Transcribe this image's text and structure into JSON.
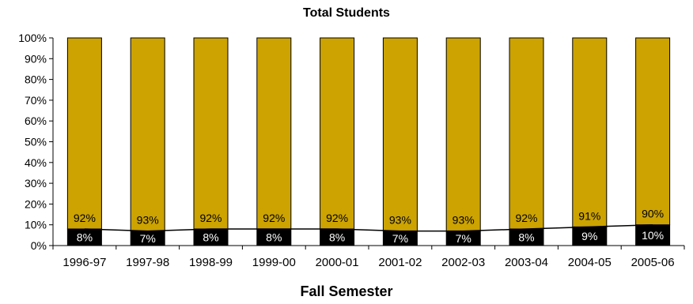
{
  "chart_data": {
    "type": "bar",
    "stacked": true,
    "percent_stacked": true,
    "title": "Total Students",
    "xlabel": "Fall Semester",
    "ylabel": "",
    "ylim": [
      0,
      100
    ],
    "yticks": [
      "0%",
      "10%",
      "20%",
      "30%",
      "40%",
      "50%",
      "60%",
      "70%",
      "80%",
      "90%",
      "100%"
    ],
    "categories": [
      "1996-97",
      "1997-98",
      "1998-99",
      "1999-00",
      "2000-01",
      "2001-02",
      "2002-03",
      "2003-04",
      "2004-05",
      "2005-06"
    ],
    "series": [
      {
        "values": [
          8,
          7,
          8,
          8,
          8,
          7,
          7,
          8,
          9,
          10
        ],
        "labels": [
          "8%",
          "7%",
          "8%",
          "8%",
          "8%",
          "7%",
          "7%",
          "8%",
          "9%",
          "10%"
        ],
        "color": "#000000",
        "line_overlay": true
      },
      {
        "values": [
          92,
          93,
          92,
          92,
          92,
          93,
          93,
          92,
          91,
          90
        ],
        "labels": [
          "92%",
          "93%",
          "92%",
          "92%",
          "92%",
          "93%",
          "93%",
          "92%",
          "91%",
          "90%"
        ],
        "color": "#CCA300"
      }
    ],
    "grid": false,
    "legend": "none"
  }
}
